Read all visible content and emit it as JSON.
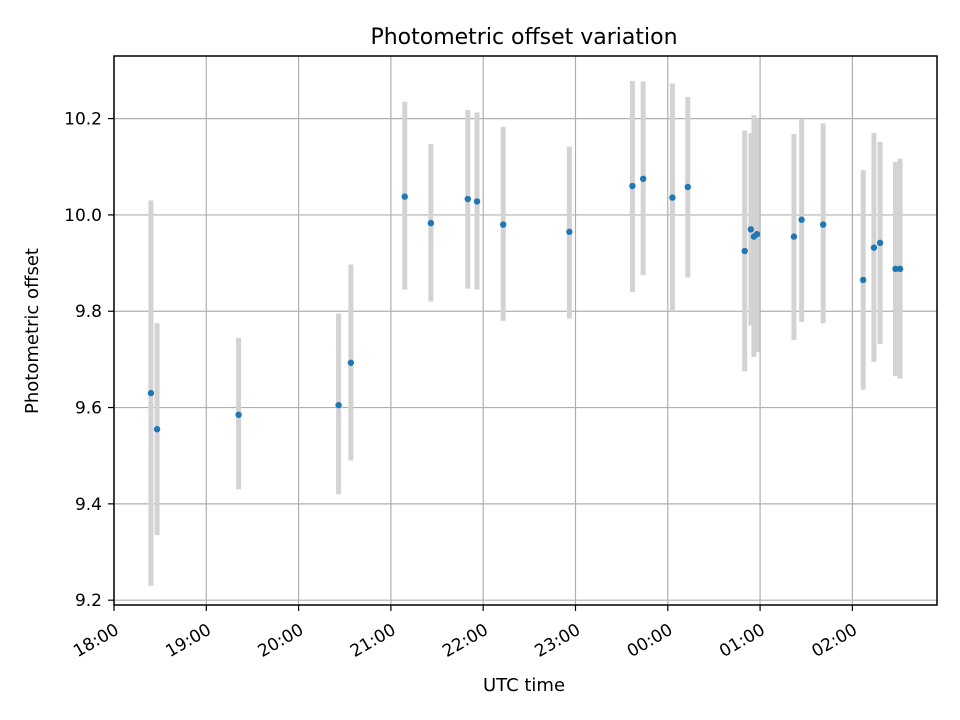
{
  "chart_data": {
    "type": "scatter",
    "title": "Photometric offset variation",
    "xlabel": "UTC time",
    "ylabel": "Photometric offset",
    "x_axis": "time",
    "xlim": [
      "2000-01-01T18:00",
      "2000-01-02T02:55"
    ],
    "ylim": [
      9.19,
      10.33
    ],
    "grid": true,
    "x_ticks": [
      {
        "t": "2000-01-01T18:00",
        "label": "18:00"
      },
      {
        "t": "2000-01-01T19:00",
        "label": "19:00"
      },
      {
        "t": "2000-01-01T20:00",
        "label": "20:00"
      },
      {
        "t": "2000-01-01T21:00",
        "label": "21:00"
      },
      {
        "t": "2000-01-01T22:00",
        "label": "22:00"
      },
      {
        "t": "2000-01-01T23:00",
        "label": "23:00"
      },
      {
        "t": "2000-01-02T00:00",
        "label": "00:00"
      },
      {
        "t": "2000-01-02T01:00",
        "label": "01:00"
      },
      {
        "t": "2000-01-02T02:00",
        "label": "02:00"
      }
    ],
    "y_ticks": [
      9.2,
      9.4,
      9.6,
      9.8,
      10.0,
      10.2
    ],
    "y_tick_labels": [
      "9.2",
      "9.4",
      "9.6",
      "9.8",
      "10.0",
      "10.2"
    ],
    "colors": {
      "point": "#1f77b4",
      "errorbar": "#d3d3d3",
      "grid": "#b0b0b0"
    },
    "points": [
      {
        "t": "2000-01-01T18:24",
        "y": 9.63,
        "ylo": 9.23,
        "yhi": 10.03
      },
      {
        "t": "2000-01-01T18:28",
        "y": 9.555,
        "ylo": 9.335,
        "yhi": 9.775
      },
      {
        "t": "2000-01-01T19:21",
        "y": 9.585,
        "ylo": 9.43,
        "yhi": 9.745
      },
      {
        "t": "2000-01-01T20:26",
        "y": 9.605,
        "ylo": 9.42,
        "yhi": 9.795
      },
      {
        "t": "2000-01-01T20:34",
        "y": 9.693,
        "ylo": 9.49,
        "yhi": 9.897
      },
      {
        "t": "2000-01-01T21:09",
        "y": 10.038,
        "ylo": 9.845,
        "yhi": 10.235
      },
      {
        "t": "2000-01-01T21:26",
        "y": 9.983,
        "ylo": 9.82,
        "yhi": 10.147
      },
      {
        "t": "2000-01-01T21:50",
        "y": 10.033,
        "ylo": 9.847,
        "yhi": 10.218
      },
      {
        "t": "2000-01-01T21:56",
        "y": 10.028,
        "ylo": 9.845,
        "yhi": 10.213
      },
      {
        "t": "2000-01-01T22:13",
        "y": 9.98,
        "ylo": 9.78,
        "yhi": 10.183
      },
      {
        "t": "2000-01-01T22:56",
        "y": 9.965,
        "ylo": 9.785,
        "yhi": 10.142
      },
      {
        "t": "2000-01-01T23:37",
        "y": 10.06,
        "ylo": 9.84,
        "yhi": 10.278
      },
      {
        "t": "2000-01-01T23:44",
        "y": 10.075,
        "ylo": 9.875,
        "yhi": 10.277
      },
      {
        "t": "2000-01-02T00:03",
        "y": 10.036,
        "ylo": 9.8,
        "yhi": 10.273
      },
      {
        "t": "2000-01-02T00:13",
        "y": 10.058,
        "ylo": 9.87,
        "yhi": 10.245
      },
      {
        "t": "2000-01-02T00:50",
        "y": 9.925,
        "ylo": 9.675,
        "yhi": 10.175
      },
      {
        "t": "2000-01-02T00:54",
        "y": 9.97,
        "ylo": 9.77,
        "yhi": 10.17
      },
      {
        "t": "2000-01-02T00:56",
        "y": 9.955,
        "ylo": 9.705,
        "yhi": 10.207
      },
      {
        "t": "2000-01-02T00:58",
        "y": 9.96,
        "ylo": 9.715,
        "yhi": 10.2
      },
      {
        "t": "2000-01-02T01:22",
        "y": 9.955,
        "ylo": 9.74,
        "yhi": 10.168
      },
      {
        "t": "2000-01-02T01:27",
        "y": 9.99,
        "ylo": 9.778,
        "yhi": 10.2
      },
      {
        "t": "2000-01-02T01:41",
        "y": 9.98,
        "ylo": 9.775,
        "yhi": 10.19
      },
      {
        "t": "2000-01-02T02:07",
        "y": 9.865,
        "ylo": 9.637,
        "yhi": 10.093
      },
      {
        "t": "2000-01-02T02:14",
        "y": 9.932,
        "ylo": 9.695,
        "yhi": 10.17
      },
      {
        "t": "2000-01-02T02:18",
        "y": 9.942,
        "ylo": 9.732,
        "yhi": 10.152
      },
      {
        "t": "2000-01-02T02:28",
        "y": 9.888,
        "ylo": 9.665,
        "yhi": 10.11
      },
      {
        "t": "2000-01-02T02:31",
        "y": 9.888,
        "ylo": 9.66,
        "yhi": 10.117
      }
    ]
  }
}
